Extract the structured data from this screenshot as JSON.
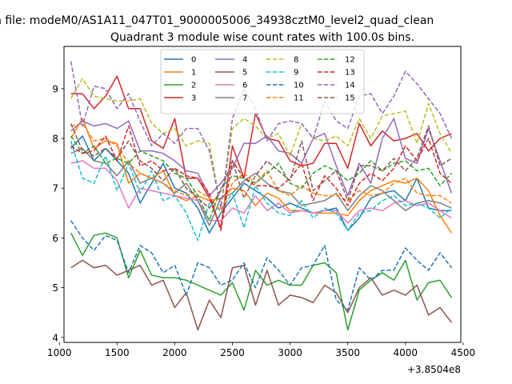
{
  "chart_data": {
    "type": "line",
    "suptitle": "n file: modeM0/AS1A11_047T01_9000005006_34938cztM0_level2_quad_clean",
    "title": "Quadrant 3 module wise count rates with 100.0s bins.",
    "xlabel": "",
    "ylabel": "",
    "x_offset_label": "+3.8504e8",
    "xlim": [
      1040,
      4480
    ],
    "ylim": [
      3.9,
      9.85
    ],
    "xticks": [
      1000,
      1500,
      2000,
      2500,
      3000,
      3500,
      4000,
      4500
    ],
    "yticks": [
      4,
      5,
      6,
      7,
      8,
      9
    ],
    "grid": false,
    "legend_position": "upper center",
    "legend_columns": 4,
    "x": [
      1100,
      1200,
      1300,
      1400,
      1500,
      1600,
      1700,
      1800,
      1900,
      2000,
      2100,
      2200,
      2300,
      2400,
      2500,
      2600,
      2700,
      2800,
      2900,
      3000,
      3100,
      3200,
      3300,
      3400,
      3500,
      3600,
      3700,
      3800,
      3900,
      4000,
      4100,
      4200,
      4300,
      4400
    ],
    "series": [
      {
        "name": "0",
        "color": "#1f77b4",
        "dash": "solid",
        "values": [
          7.8,
          8.05,
          7.55,
          7.8,
          7.55,
          7.3,
          6.7,
          7.1,
          7.5,
          7.0,
          6.9,
          6.6,
          6.1,
          6.5,
          6.8,
          7.1,
          6.95,
          6.8,
          6.6,
          6.7,
          6.6,
          6.5,
          6.55,
          6.6,
          6.15,
          6.4,
          6.8,
          6.9,
          6.95,
          6.75,
          7.2,
          6.6,
          6.55,
          6.55
        ]
      },
      {
        "name": "1",
        "color": "#ff7f0e",
        "dash": "solid",
        "values": [
          8.0,
          8.4,
          7.8,
          7.95,
          7.9,
          7.1,
          7.3,
          7.2,
          7.35,
          6.85,
          6.75,
          6.85,
          6.75,
          6.8,
          7.0,
          6.95,
          6.65,
          6.9,
          6.8,
          6.55,
          6.55,
          6.5,
          6.5,
          6.5,
          6.45,
          6.75,
          6.95,
          7.05,
          7.15,
          7.1,
          7.2,
          6.95,
          6.45,
          6.1
        ]
      },
      {
        "name": "2",
        "color": "#2ca02c",
        "dash": "solid",
        "values": [
          6.1,
          5.65,
          6.05,
          6.1,
          6.0,
          5.2,
          5.75,
          5.25,
          5.2,
          5.2,
          5.15,
          5.05,
          4.95,
          4.85,
          5.1,
          4.55,
          5.35,
          5.05,
          5.15,
          5.05,
          5.05,
          5.45,
          5.5,
          5.3,
          4.15,
          4.95,
          5.15,
          5.3,
          5.15,
          5.55,
          4.75,
          5.1,
          5.15,
          4.8
        ]
      },
      {
        "name": "3",
        "color": "#d62728",
        "dash": "solid",
        "values": [
          8.9,
          8.9,
          8.6,
          8.85,
          9.25,
          8.6,
          8.6,
          7.95,
          7.8,
          8.4,
          7.2,
          7.2,
          6.8,
          6.2,
          7.85,
          7.2,
          8.5,
          8.0,
          7.95,
          7.55,
          7.45,
          7.5,
          7.9,
          7.9,
          7.4,
          8.3,
          7.85,
          8.15,
          7.95,
          8.0,
          8.1,
          7.75,
          8.0,
          8.1
        ]
      },
      {
        "name": "4",
        "color": "#9467bd",
        "dash": "solid",
        "values": [
          8.15,
          8.35,
          8.25,
          8.3,
          8.2,
          8.35,
          7.75,
          7.75,
          7.7,
          7.55,
          7.35,
          7.3,
          6.85,
          7.1,
          7.4,
          7.9,
          7.9,
          8.05,
          7.75,
          7.7,
          7.5,
          8.0,
          8.1,
          7.45,
          6.85,
          7.5,
          7.1,
          8.0,
          8.4,
          7.6,
          7.5,
          8.2,
          7.55,
          6.9
        ]
      },
      {
        "name": "5",
        "color": "#8c564b",
        "dash": "solid",
        "values": [
          5.4,
          5.55,
          5.4,
          5.45,
          5.25,
          5.35,
          5.45,
          5.05,
          5.15,
          4.6,
          4.9,
          4.15,
          4.75,
          4.4,
          5.4,
          5.45,
          4.65,
          5.35,
          4.65,
          4.85,
          4.8,
          4.7,
          5.05,
          4.9,
          4.5,
          5.0,
          5.2,
          4.85,
          4.95,
          4.85,
          5.05,
          4.45,
          4.6,
          4.3
        ]
      },
      {
        "name": "6",
        "color": "#e377c2",
        "dash": "solid",
        "values": [
          7.5,
          7.55,
          7.4,
          7.4,
          7.15,
          6.6,
          7.0,
          6.95,
          6.9,
          6.85,
          6.8,
          6.75,
          6.35,
          6.35,
          6.6,
          6.5,
          6.85,
          6.55,
          6.7,
          6.5,
          6.55,
          6.5,
          6.55,
          6.55,
          6.3,
          6.55,
          6.6,
          6.55,
          6.7,
          6.75,
          6.65,
          6.7,
          6.55,
          6.4
        ]
      },
      {
        "name": "7",
        "color": "#7f7f7f",
        "dash": "solid",
        "values": [
          7.7,
          7.8,
          7.55,
          7.5,
          7.25,
          7.55,
          7.1,
          7.2,
          7.1,
          6.9,
          7.1,
          6.75,
          6.25,
          6.8,
          6.9,
          7.15,
          7.3,
          7.1,
          6.95,
          6.9,
          6.65,
          6.7,
          6.75,
          6.9,
          6.55,
          6.85,
          7.05,
          6.95,
          6.75,
          6.55,
          6.7,
          6.75,
          6.7,
          6.6
        ]
      },
      {
        "name": "8",
        "color": "#bcbd22",
        "dash": "dashed",
        "values": [
          8.8,
          9.2,
          8.85,
          8.8,
          8.75,
          8.75,
          8.8,
          8.3,
          8.1,
          8.2,
          7.85,
          7.95,
          7.9,
          6.6,
          8.2,
          8.4,
          8.25,
          8.0,
          8.1,
          7.65,
          8.3,
          8.0,
          7.95,
          8.05,
          7.85,
          8.4,
          8.0,
          8.45,
          8.5,
          8.55,
          7.9,
          8.7,
          8.1,
          7.7
        ]
      },
      {
        "name": "9",
        "color": "#17becf",
        "dash": "dashed",
        "values": [
          7.95,
          7.2,
          7.1,
          7.65,
          6.95,
          7.5,
          6.9,
          7.35,
          6.75,
          6.85,
          6.5,
          5.95,
          6.7,
          6.55,
          6.9,
          6.2,
          7.05,
          6.7,
          6.5,
          6.45,
          6.75,
          6.4,
          6.6,
          6.5,
          6.15,
          6.5,
          6.55,
          6.75,
          6.85,
          6.65,
          6.7,
          6.6,
          6.4,
          6.6
        ]
      },
      {
        "name": "10",
        "color": "#1f77b4",
        "dash": "dashed",
        "values": [
          6.35,
          6.0,
          5.75,
          6.05,
          5.95,
          5.3,
          5.85,
          5.7,
          5.3,
          5.45,
          4.85,
          5.5,
          5.4,
          5.05,
          5.15,
          5.5,
          5.0,
          5.6,
          5.35,
          5.05,
          5.4,
          5.45,
          5.85,
          4.75,
          4.55,
          5.4,
          5.15,
          5.35,
          5.35,
          5.8,
          5.55,
          5.35,
          5.7,
          5.4
        ]
      },
      {
        "name": "11",
        "color": "#ff7f0e",
        "dash": "dashed",
        "values": [
          8.25,
          8.3,
          7.95,
          8.0,
          7.85,
          7.5,
          7.3,
          7.2,
          7.1,
          6.95,
          6.85,
          6.95,
          6.8,
          6.55,
          7.1,
          7.3,
          7.1,
          7.35,
          6.95,
          6.85,
          7.05,
          6.9,
          6.85,
          6.85,
          6.75,
          6.95,
          6.85,
          6.9,
          7.1,
          7.2,
          6.9,
          6.85,
          6.85,
          6.7
        ]
      },
      {
        "name": "12",
        "color": "#2ca02c",
        "dash": "dashed",
        "values": [
          8.05,
          7.7,
          7.85,
          7.5,
          7.6,
          7.5,
          7.75,
          7.65,
          7.55,
          7.3,
          7.2,
          6.85,
          6.35,
          7.0,
          7.25,
          7.2,
          7.1,
          7.3,
          7.5,
          7.1,
          7.0,
          7.3,
          7.45,
          7.35,
          7.15,
          7.3,
          7.55,
          7.35,
          7.5,
          7.55,
          7.35,
          7.4,
          7.05,
          7.3
        ]
      },
      {
        "name": "13",
        "color": "#d62728",
        "dash": "dashed",
        "values": [
          7.85,
          7.7,
          7.75,
          8.05,
          7.55,
          8.25,
          7.45,
          7.55,
          7.35,
          7.4,
          7.25,
          7.2,
          6.9,
          6.15,
          7.55,
          7.2,
          7.05,
          7.05,
          7.0,
          7.2,
          7.5,
          6.75,
          7.25,
          7.0,
          6.65,
          7.1,
          7.3,
          7.15,
          7.4,
          7.85,
          7.55,
          8.0,
          7.3,
          7.1
        ]
      },
      {
        "name": "14",
        "color": "#9467bd",
        "dash": "dashed",
        "values": [
          9.55,
          8.25,
          9.05,
          9.0,
          8.6,
          8.9,
          8.35,
          7.85,
          8.1,
          7.9,
          8.2,
          8.2,
          7.75,
          6.6,
          8.4,
          9.0,
          8.6,
          7.95,
          8.3,
          8.35,
          8.3,
          8.0,
          8.75,
          8.35,
          8.2,
          8.85,
          8.9,
          8.5,
          8.85,
          9.35,
          9.1,
          8.8,
          8.5,
          8.0
        ]
      },
      {
        "name": "15",
        "color": "#8c564b",
        "dash": "dashed",
        "values": [
          8.3,
          7.75,
          7.65,
          7.8,
          7.6,
          7.95,
          7.55,
          7.4,
          7.15,
          7.4,
          7.0,
          6.8,
          6.6,
          6.95,
          7.55,
          6.8,
          7.25,
          7.55,
          7.35,
          7.15,
          7.95,
          6.95,
          7.15,
          7.35,
          6.75,
          7.45,
          7.45,
          7.35,
          7.6,
          7.35,
          7.6,
          8.25,
          7.45,
          7.6
        ]
      }
    ]
  }
}
